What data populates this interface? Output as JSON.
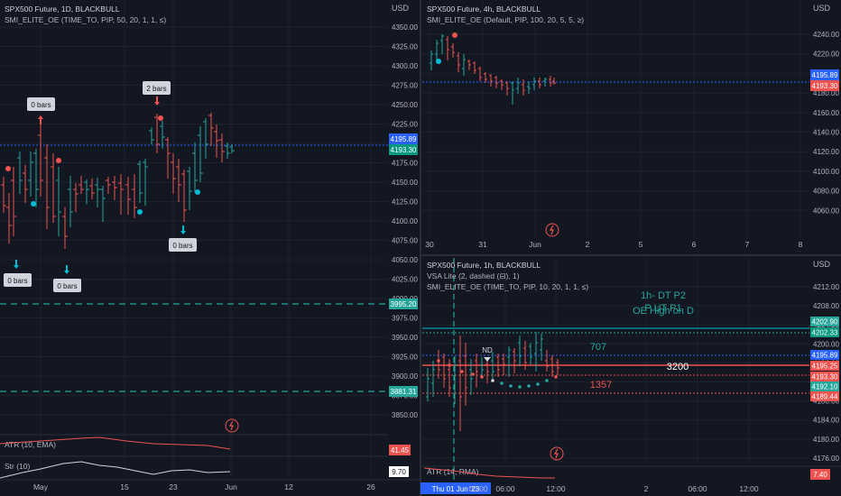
{
  "colors": {
    "bg": "#131722",
    "up": "#26a69a",
    "down": "#ef5350",
    "grid": "#1e222d",
    "text": "#b2b5be",
    "blue": "#2962ff",
    "cyan": "#00bcd4"
  },
  "left": {
    "title": "SPX500 Future, 1D, BLACKBULL",
    "indicator": "SMI_ELITE_OE (TIME_TO, PIP, 50, 20, 1, 1, ≤)",
    "currency": "USD",
    "price_ticks": [
      "4350.00",
      "4325.00",
      "4300.00",
      "4275.00",
      "4250.00",
      "4225.00",
      "4200.00",
      "4175.00",
      "4150.00",
      "4125.00",
      "4100.00",
      "4075.00",
      "4050.00",
      "4025.00",
      "4000.00",
      "3975.00",
      "3950.00",
      "3925.00",
      "3900.00",
      "3875.00",
      "3850.00"
    ],
    "tags": {
      "blue": "4195.89",
      "green": "4193.30",
      "dash1": "3995.20",
      "dash2": "3881.31"
    },
    "callouts": [
      {
        "text": "0 bars"
      },
      {
        "text": "2 bars"
      },
      {
        "text": "0 bars"
      },
      {
        "text": "0 bars"
      },
      {
        "text": "0 bars"
      }
    ],
    "atr_label": "ATR (10, EMA)",
    "atr_value": "41.45",
    "str_label": "Str (10)",
    "str_value": "9.70",
    "x_ticks": [
      "May",
      "15",
      "23",
      "Jun",
      "12",
      "26"
    ]
  },
  "right_top": {
    "title": "SPX500 Future, 4h, BLACKBULL",
    "indicator": "SMI_ELITE_OE (Default, PIP, 100, 20, 5, 5, ≥)",
    "currency": "USD",
    "price_ticks": [
      "4240.00",
      "4220.00",
      "4200.00",
      "4180.00",
      "4160.00",
      "4140.00",
      "4120.00",
      "4100.00",
      "4080.00",
      "4060.00"
    ],
    "tags": {
      "blue": "4195.89",
      "red": "4193.30"
    },
    "x_ticks": [
      "30",
      "31",
      "Jun",
      "2",
      "5",
      "6",
      "7",
      "8"
    ]
  },
  "right_bottom": {
    "title": "SPX500 Future, 1h, BLACKBULL",
    "indicator1": "VSA Lite (2, dashed (⊟), 1)",
    "indicator2": "SMI_ELITE_OE (TIME_TO, PIP, 10, 20, 1, 1, ≤)",
    "currency": "USD",
    "price_ticks": [
      "4212.00",
      "4208.00",
      "4204.00",
      "4200.00",
      "4196.00",
      "4192.00",
      "4188.00",
      "4184.00",
      "4180.00",
      "4176.00"
    ],
    "tags": [
      "4202.90",
      "4202.33",
      "4195.89",
      "4195.25",
      "4193.30",
      "4192.10",
      "4189.44"
    ],
    "annotations": {
      "dt": "1h- DT P2",
      "ut": "P UT P1",
      "oe": "OE High on D",
      "n707": "707",
      "n3200": "3200",
      "n1357": "1357",
      "nd": "ND"
    },
    "atr_label": "ATR (14, RMA)",
    "atr_value": "7.40",
    "x_ticks": [
      "Thu 01 Jun '23",
      "00:00",
      "06:00",
      "12:00",
      "2",
      "06:00",
      "12:00"
    ]
  }
}
